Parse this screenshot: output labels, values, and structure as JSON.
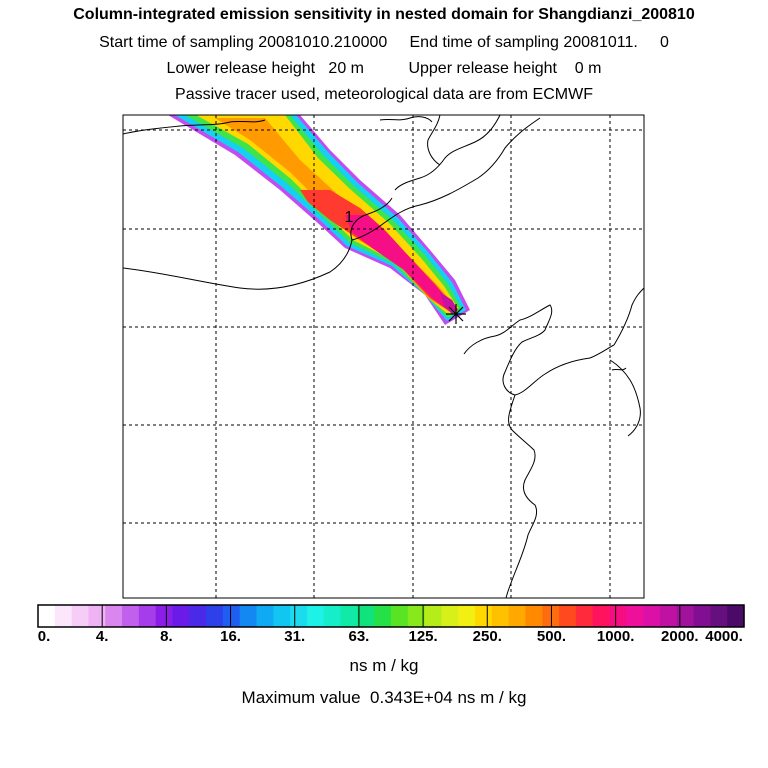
{
  "header": {
    "title": "Column-integrated emission sensitivity in nested domain for Shangdianzi_200810",
    "sampling": "Start time of sampling 20081010.210000     End time of sampling 20081011.     0",
    "release": "Lower release height   20 m          Upper release height    0 m",
    "tracer": "Passive tracer used, meteorological data are from ECMWF"
  },
  "chart_data": {
    "type": "heatmap",
    "title": "Column-integrated emission sensitivity in nested domain for Shangdianzi_200810",
    "map_label": "1",
    "release_marker": "receptor-star",
    "gridlines": true,
    "colorbar": {
      "tick_labels": [
        "0.",
        "4.",
        "8.",
        "16.",
        "31.",
        "63.",
        "125.",
        "250.",
        "500.",
        "1000.",
        "2000.",
        "4000."
      ],
      "units": "ns m / kg",
      "colors": [
        "#ffffff",
        "#fbe6fb",
        "#f6cdf6",
        "#efb2f2",
        "#d987ee",
        "#c060ec",
        "#a53deb",
        "#8a1ee8",
        "#6a1be8",
        "#4a2ae8",
        "#2e40ea",
        "#1f5ef0",
        "#1488f2",
        "#10a9f3",
        "#12c6f2",
        "#1cdbee",
        "#1ef2e6",
        "#16eec9",
        "#10eaa6",
        "#10e37b",
        "#26e047",
        "#59e423",
        "#87e81c",
        "#b4ed1a",
        "#d8f01a",
        "#f2ef12",
        "#ffd800",
        "#ffc000",
        "#ffa800",
        "#ff8a00",
        "#ff6c10",
        "#ff4a1e",
        "#ff2a3c",
        "#ff135e",
        "#f70d82",
        "#ee0f9a",
        "#db10a6",
        "#c012a2",
        "#a1129c",
        "#820f92",
        "#66107f",
        "#4c0a68"
      ]
    },
    "maximum_value": "Maximum value  0.343E+04 ns m / kg"
  }
}
